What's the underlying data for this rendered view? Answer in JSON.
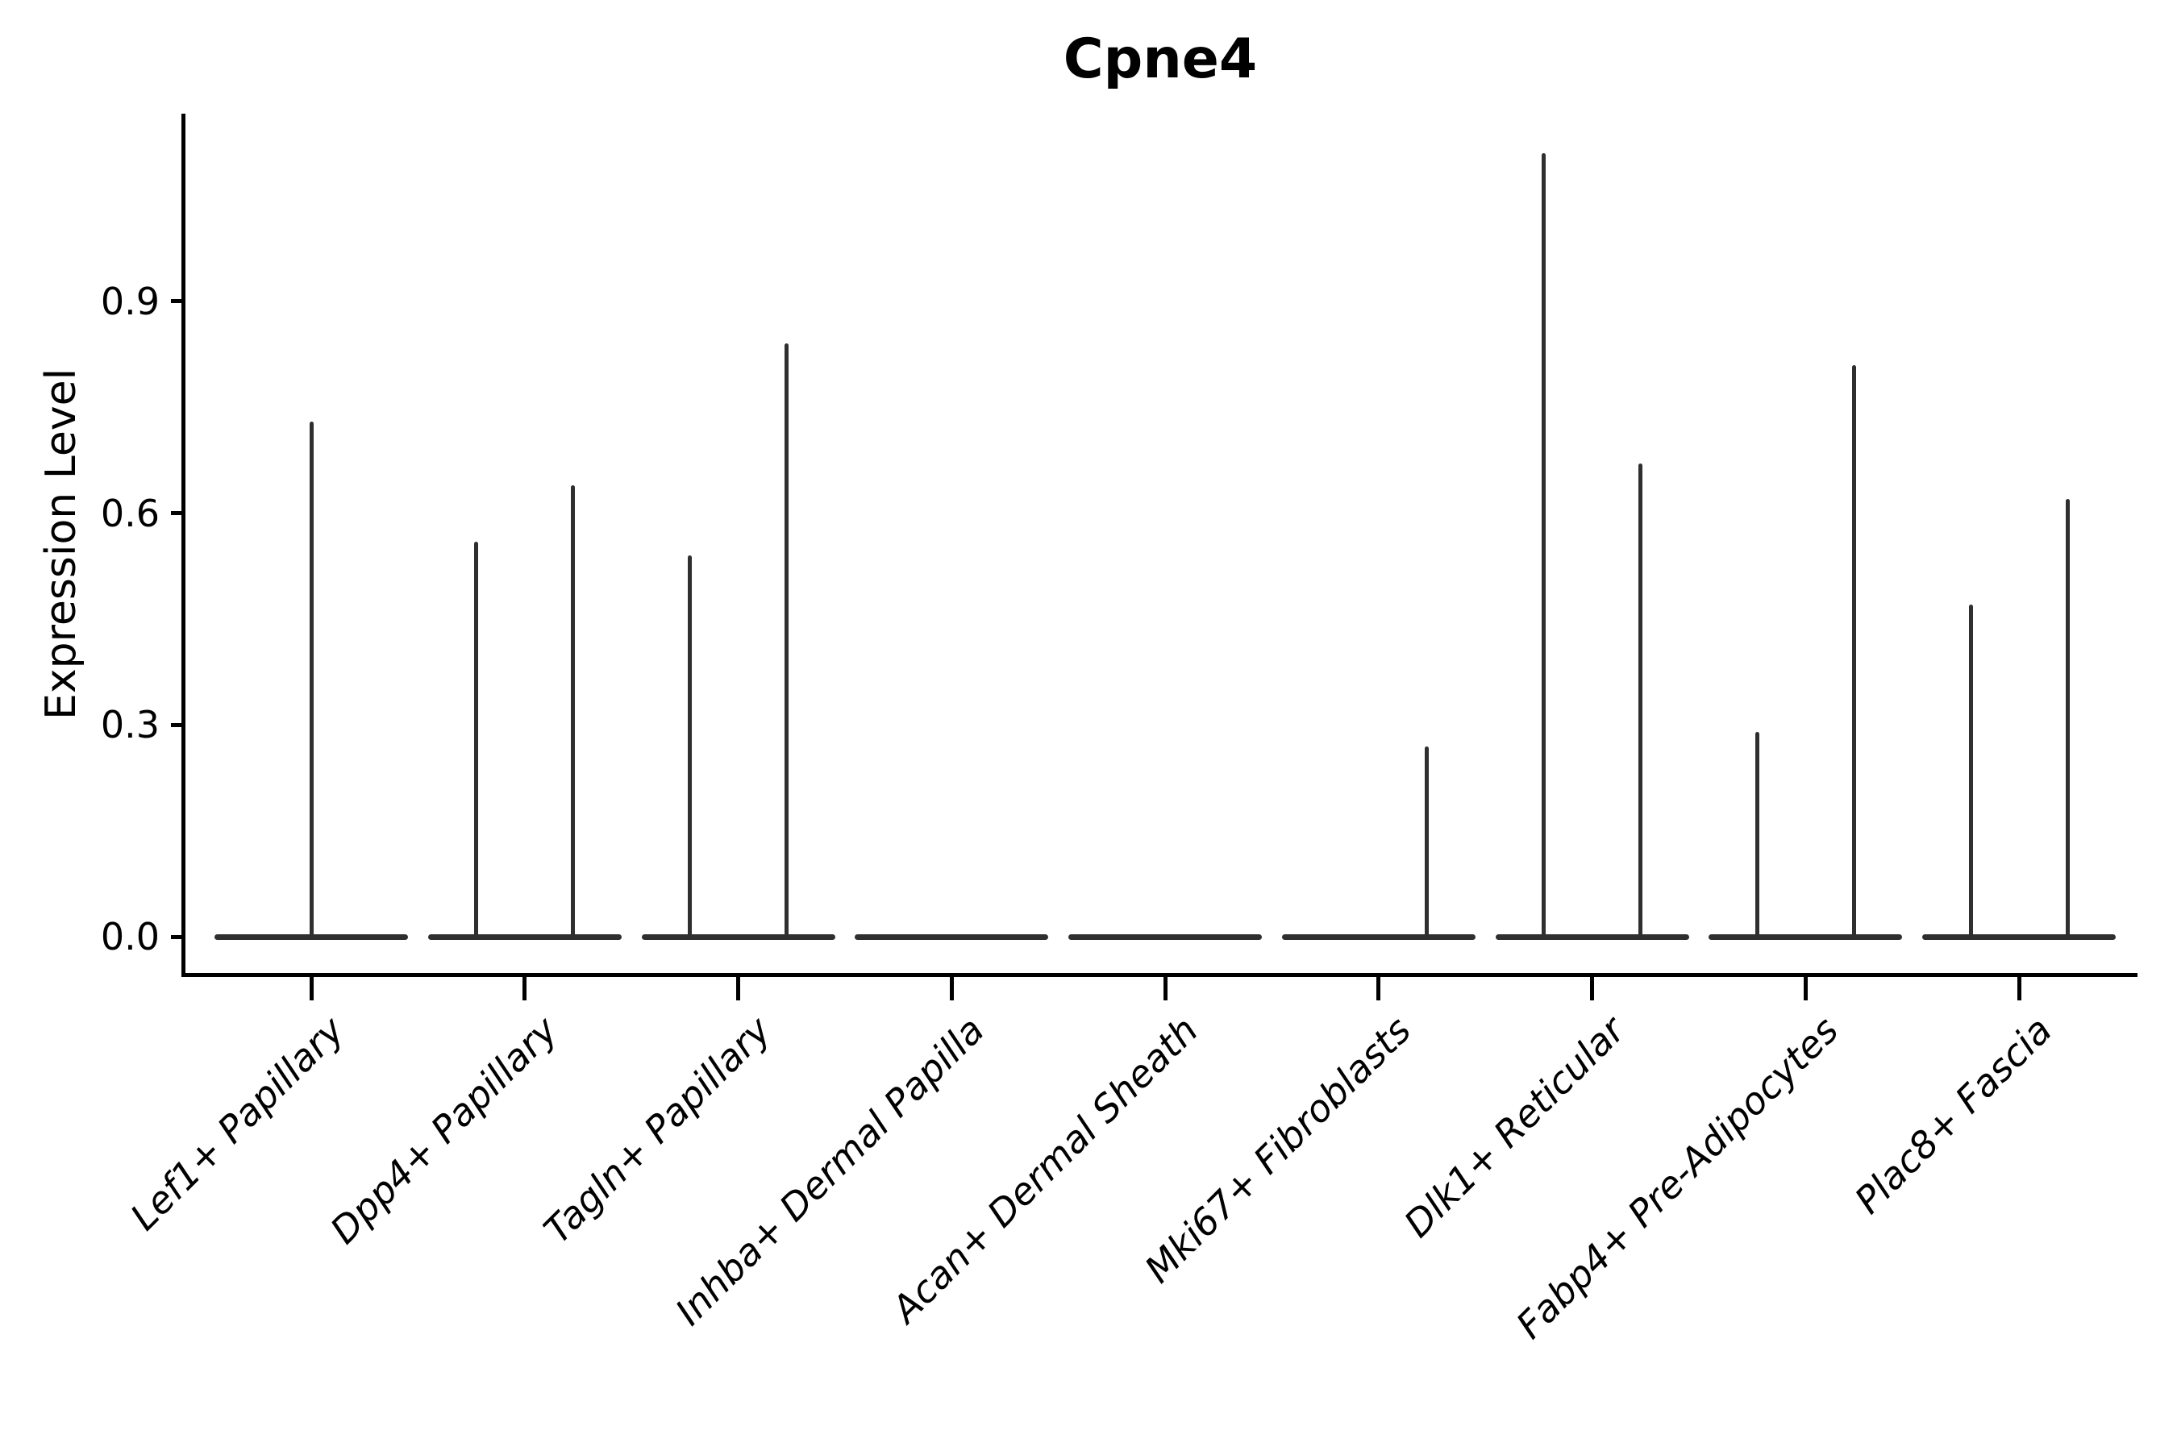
{
  "chart_data": {
    "type": "violin",
    "title": "Cpne4",
    "ylabel": "Expression Level",
    "xlabel": "",
    "yticks": [
      0.0,
      0.3,
      0.6,
      0.9
    ],
    "ylim": [
      0,
      1.17
    ],
    "legend": "none",
    "grid": false,
    "description": "Violin plot of Cpne4 expression per fibroblast subtype; each group shows a flat zero-density violin baseline with thin spikes rising to the maximum expression of each (split) violin.",
    "categories": [
      "Lef1+ Papillary",
      "Dpp4+ Papillary",
      "Tagln+ Papillary",
      "Inhba+ Dermal Papilla",
      "Acan+ Dermal Sheath",
      "Mki67+ Fibroblasts",
      "Dlk1+ Reticular",
      "Fabp4+ Pre-Adipocytes",
      "Plac8+ Fascia"
    ],
    "groups": [
      {
        "label": "Lef1+ Papillary",
        "violins": [
          {
            "side": "center",
            "max": 0.73
          }
        ]
      },
      {
        "label": "Dpp4+ Papillary",
        "violins": [
          {
            "side": "left",
            "max": 0.56
          },
          {
            "side": "right",
            "max": 0.64
          }
        ]
      },
      {
        "label": "Tagln+ Papillary",
        "violins": [
          {
            "side": "left",
            "max": 0.54
          },
          {
            "side": "right",
            "max": 0.84
          }
        ]
      },
      {
        "label": "Inhba+ Dermal Papilla",
        "violins": []
      },
      {
        "label": "Acan+ Dermal Sheath",
        "violins": []
      },
      {
        "label": "Mki67+ Fibroblasts",
        "violins": [
          {
            "side": "right",
            "max": 0.27
          }
        ]
      },
      {
        "label": "Dlk1+ Reticular",
        "violins": [
          {
            "side": "left",
            "max": 1.11
          },
          {
            "side": "right",
            "max": 0.67
          }
        ]
      },
      {
        "label": "Fabp4+ Pre-Adipocytes",
        "violins": [
          {
            "side": "left",
            "max": 0.29
          },
          {
            "side": "right",
            "max": 0.81
          }
        ]
      },
      {
        "label": "Plac8+ Fascia",
        "violins": [
          {
            "side": "left",
            "max": 0.47
          },
          {
            "side": "right",
            "max": 0.62
          }
        ]
      }
    ],
    "colors": {
      "violin": "#2f2f2f",
      "axis": "#000000",
      "text": "#000000",
      "background": "#ffffff"
    }
  }
}
